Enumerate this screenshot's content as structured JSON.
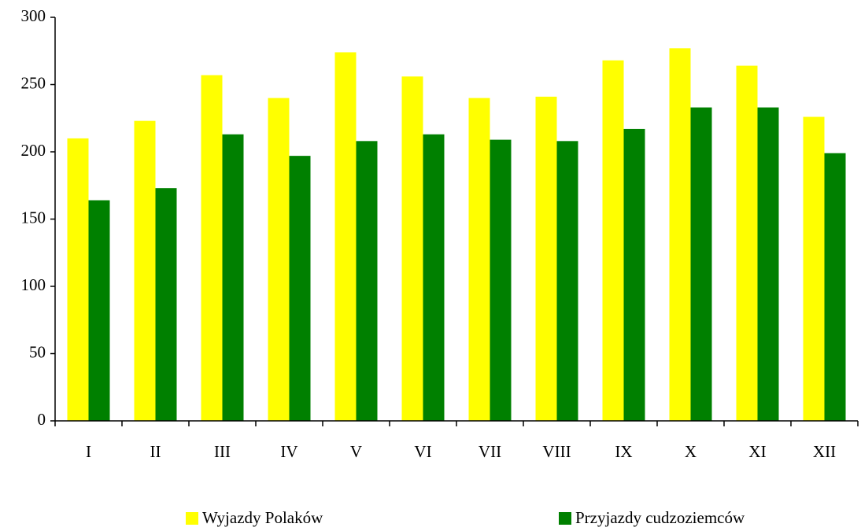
{
  "chart_data": {
    "type": "bar",
    "categories": [
      "I",
      "II",
      "III",
      "IV",
      "V",
      "VI",
      "VII",
      "VIII",
      "IX",
      "X",
      "XI",
      "XII"
    ],
    "series": [
      {
        "name": "Wyjazdy Polaków",
        "color": "#ffff00",
        "values": [
          210,
          223,
          257,
          240,
          274,
          256,
          240,
          241,
          268,
          277,
          264,
          226
        ]
      },
      {
        "name": "Przyjazdy cudzoziemców",
        "color": "#008000",
        "values": [
          164,
          173,
          213,
          197,
          208,
          213,
          209,
          208,
          217,
          233,
          233,
          199
        ]
      }
    ],
    "ylim": [
      0,
      300
    ],
    "yticks": [
      0,
      50,
      100,
      150,
      200,
      250,
      300
    ],
    "grid": false,
    "legend": "bottom"
  }
}
